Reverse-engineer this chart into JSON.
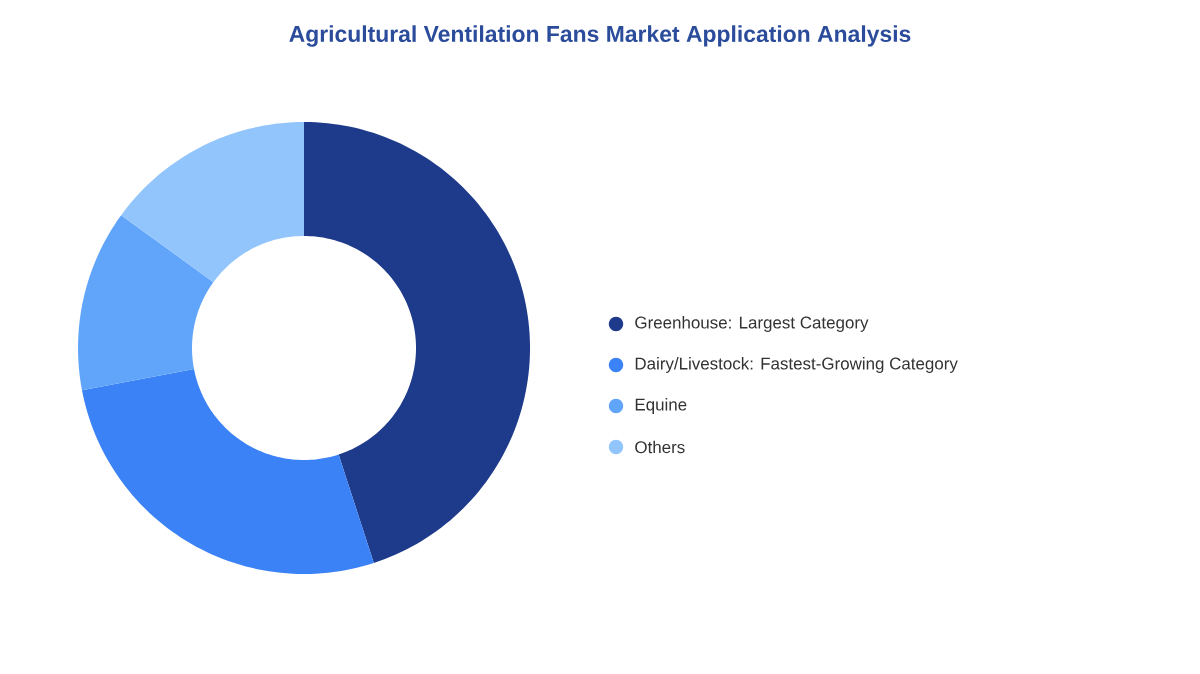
{
  "chart_data": {
    "type": "donut",
    "title": "Agricultural Ventilation Fans Market Application Analysis",
    "categories": [
      "Greenhouse:  Largest Category",
      "Dairy/Livestock:  Fastest-Growing Category",
      "Equine",
      "Others"
    ],
    "values": [
      45,
      27,
      13,
      15
    ],
    "colors": [
      "#1e3a8a",
      "#3b82f6",
      "#60a5fa",
      "#93c5fd"
    ],
    "legend": "right"
  }
}
